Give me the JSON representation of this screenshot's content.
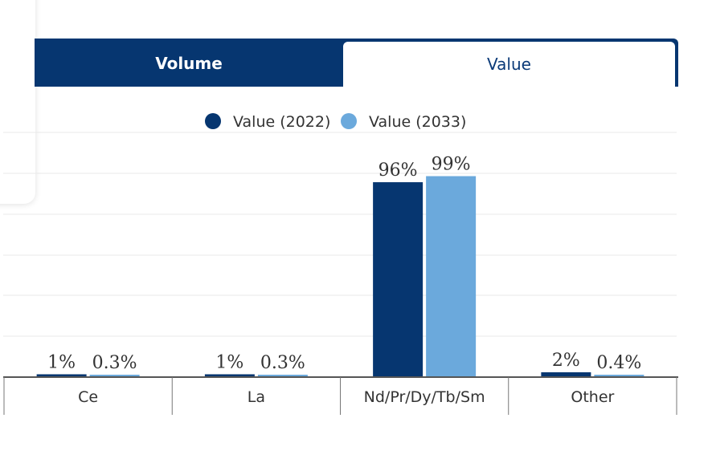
{
  "tabs": [
    {
      "label": "Volume",
      "active": false
    },
    {
      "label": "Value",
      "active": true
    }
  ],
  "colors": {
    "navy": "#063670",
    "light_blue": "#6ba9dc",
    "tab_text_active": "#0b3a78",
    "grid": "#e8e8e8",
    "axis": "#555555"
  },
  "chart_data": {
    "type": "bar",
    "categories": [
      "Ce",
      "La",
      "Nd/Pr/Dy/Tb/Sm",
      "Other"
    ],
    "series": [
      {
        "name": "Value (2022)",
        "values": [
          1,
          1,
          96,
          2
        ],
        "labels": [
          "1%",
          "1%",
          "96%",
          "2%"
        ],
        "color": "#063670"
      },
      {
        "name": "Value (2033)",
        "values": [
          0.3,
          0.3,
          99,
          0.4
        ],
        "labels": [
          "0.3%",
          "0.3%",
          "99%",
          "0.4%"
        ],
        "color": "#6ba9dc"
      }
    ],
    "ylim": [
      0,
      100
    ],
    "grid": true,
    "legend": "top-center",
    "title": "",
    "xlabel": "",
    "ylabel": ""
  }
}
